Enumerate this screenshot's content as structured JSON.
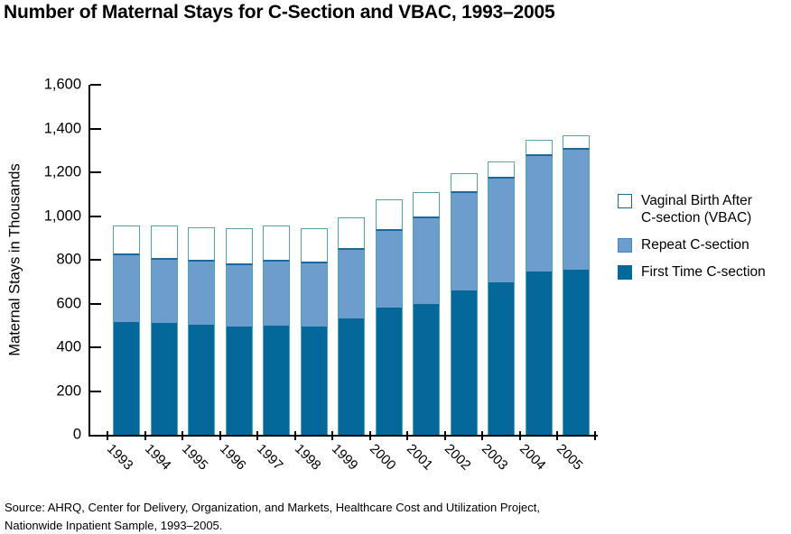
{
  "title": "Number of Maternal Stays for C-Section and VBAC, 1993–2005",
  "chart_data": {
    "type": "bar",
    "stacked": true,
    "title": "Number of Maternal Stays for C-Section and VBAC, 1993–2005",
    "ylabel": "Maternal Stays in Thousands",
    "xlabel": "",
    "ylim": [
      0,
      1600
    ],
    "ytick_step": 200,
    "grid": false,
    "legend_position": "right",
    "categories": [
      "1993",
      "1994",
      "1995",
      "1996",
      "1997",
      "1998",
      "1999",
      "2000",
      "2001",
      "2002",
      "2003",
      "2004",
      "2005"
    ],
    "series": [
      {
        "name": "First Time C-section",
        "color": "#04689B",
        "values": [
          515,
          510,
          505,
          495,
          500,
          495,
          530,
          580,
          600,
          660,
          695,
          745,
          755
        ]
      },
      {
        "name": "Repeat C-section",
        "color": "#6C9DCC",
        "values": [
          305,
          290,
          285,
          280,
          290,
          290,
          315,
          350,
          390,
          445,
          475,
          530,
          550
        ]
      },
      {
        "name": "Vaginal Birth After C-section (VBAC)",
        "color": "#FFFFFF",
        "values": [
          135,
          155,
          160,
          170,
          165,
          160,
          150,
          145,
          120,
          90,
          80,
          75,
          65
        ]
      }
    ]
  },
  "legend": {
    "items": [
      {
        "id": "vbac",
        "label": "Vaginal Birth After\nC-section (VBAC)"
      },
      {
        "id": "repeat",
        "label": "Repeat C-section"
      },
      {
        "id": "first",
        "label": "First Time C-section"
      }
    ]
  },
  "source": "Source:  AHRQ, Center for Delivery, Organization, and Markets, Healthcare Cost and Utilization Project,\nNationwide Inpatient Sample, 1993–2005.",
  "colors": {
    "first_time": "#04689B",
    "repeat": "#6C9DCC",
    "vbac_fill": "#FFFFFF",
    "segment_border": "#4EA5AF",
    "vbac_bottom_border": "#19699B",
    "axis": "#000000"
  }
}
